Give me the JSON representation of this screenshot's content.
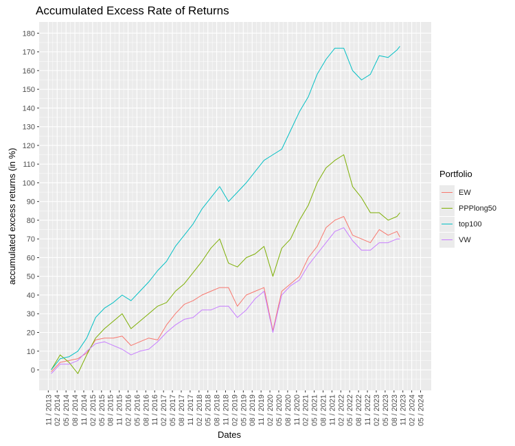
{
  "chart_data": {
    "type": "line",
    "title": "Accumulated Excess Rate of Returns",
    "xlabel": "Dates",
    "ylabel": "accumulated excess returns (in %)",
    "ylim": [
      -11,
      186
    ],
    "y_ticks": [
      0,
      10,
      20,
      30,
      40,
      50,
      60,
      70,
      80,
      90,
      100,
      110,
      120,
      130,
      140,
      150,
      160,
      170,
      180
    ],
    "x_ticks": [
      "11 / 2013",
      "02 / 2014",
      "05 / 2014",
      "08 / 2014",
      "11 / 2014",
      "02 / 2015",
      "05 / 2015",
      "08 / 2015",
      "11 / 2015",
      "02 / 2016",
      "05 / 2016",
      "08 / 2016",
      "11 / 2016",
      "02 / 2017",
      "05 / 2017",
      "08 / 2017",
      "11 / 2017",
      "02 / 2018",
      "05 / 2018",
      "08 / 2018",
      "11 / 2018",
      "02 / 2019",
      "05 / 2019",
      "08 / 2019",
      "11 / 2019",
      "02 / 2020",
      "05 / 2020",
      "08 / 2020",
      "11 / 2020",
      "02 / 2021",
      "05 / 2021",
      "08 / 2021",
      "11 / 2021",
      "02 / 2022",
      "05 / 2022",
      "08 / 2022",
      "11 / 2022",
      "02 / 2023",
      "05 / 2023",
      "08 / 2023",
      "11 / 2023",
      "02 / 2024",
      "05 / 2024"
    ],
    "grid": true,
    "legend": {
      "title": "Portfolio",
      "position": "right"
    },
    "x": [
      "12 / 2013",
      "03 / 2014",
      "06 / 2014",
      "09 / 2014",
      "12 / 2014",
      "03 / 2015",
      "06 / 2015",
      "09 / 2015",
      "12 / 2015",
      "03 / 2016",
      "06 / 2016",
      "09 / 2016",
      "12 / 2016",
      "03 / 2017",
      "06 / 2017",
      "09 / 2017",
      "12 / 2017",
      "03 / 2018",
      "06 / 2018",
      "09 / 2018",
      "12 / 2018",
      "03 / 2019",
      "06 / 2019",
      "09 / 2019",
      "12 / 2019",
      "03 / 2020",
      "06 / 2020",
      "09 / 2020",
      "12 / 2020",
      "03 / 2021",
      "06 / 2021",
      "09 / 2021",
      "12 / 2021",
      "03 / 2022",
      "06 / 2022",
      "09 / 2022",
      "12 / 2022",
      "03 / 2023",
      "06 / 2023",
      "09 / 2023",
      "10 / 2023"
    ],
    "series": [
      {
        "name": "EW",
        "color": "#F8766D",
        "values": [
          -1,
          4,
          5,
          6,
          9,
          16,
          17,
          17,
          18,
          13,
          15,
          17,
          16,
          24,
          30,
          35,
          37,
          40,
          42,
          44,
          44,
          34,
          40,
          42,
          44,
          21,
          42,
          46,
          50,
          60,
          66,
          76,
          80,
          82,
          72,
          70,
          68,
          75,
          72,
          74,
          71
        ]
      },
      {
        "name": "PPPlong50",
        "color": "#7CAE00",
        "values": [
          0,
          8,
          4,
          -2,
          8,
          17,
          22,
          26,
          30,
          22,
          26,
          30,
          34,
          36,
          42,
          46,
          52,
          58,
          65,
          70,
          57,
          55,
          60,
          62,
          66,
          50,
          65,
          70,
          80,
          88,
          100,
          108,
          112,
          115,
          98,
          92,
          84,
          84,
          80,
          82,
          84
        ]
      },
      {
        "name": "top100",
        "color": "#00BFC4",
        "values": [
          0,
          6,
          7,
          10,
          17,
          28,
          33,
          36,
          40,
          37,
          42,
          47,
          53,
          58,
          66,
          72,
          78,
          86,
          92,
          98,
          90,
          95,
          100,
          106,
          112,
          115,
          118,
          128,
          138,
          146,
          158,
          166,
          172,
          172,
          160,
          155,
          158,
          168,
          167,
          171,
          173
        ]
      },
      {
        "name": "VW",
        "color": "#C77CFF",
        "values": [
          -2,
          3,
          3,
          5,
          10,
          14,
          15,
          13,
          11,
          8,
          10,
          11,
          15,
          20,
          24,
          27,
          28,
          32,
          32,
          34,
          34,
          28,
          32,
          38,
          42,
          20,
          40,
          45,
          48,
          56,
          62,
          68,
          74,
          76,
          69,
          64,
          64,
          68,
          68,
          70,
          70
        ]
      }
    ]
  }
}
